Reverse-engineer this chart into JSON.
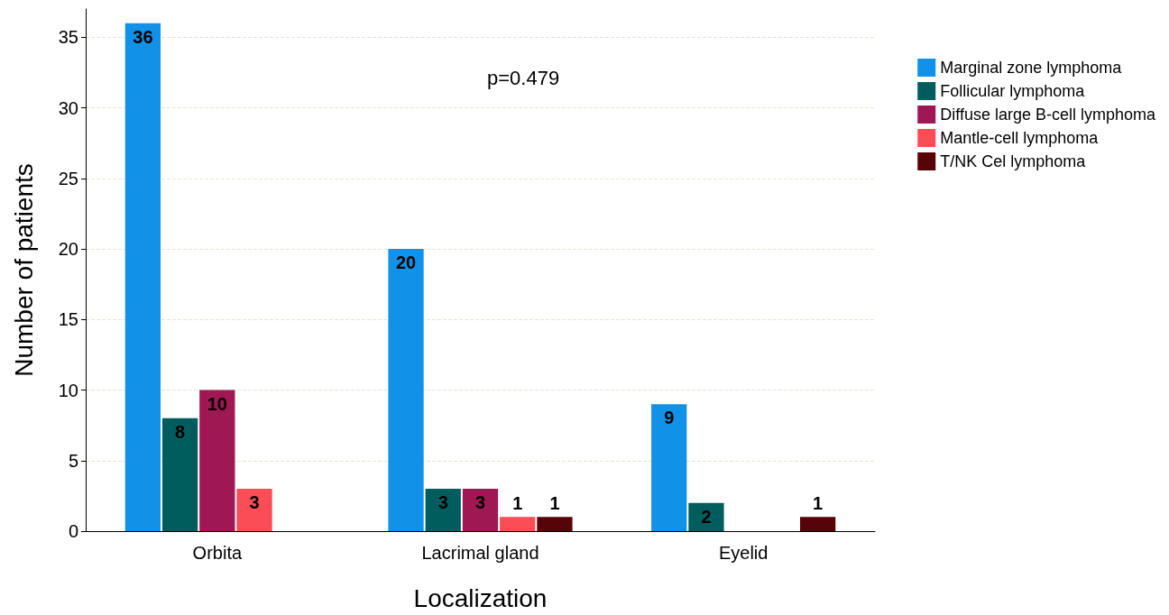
{
  "chart_data": {
    "type": "bar",
    "xlabel": "Localization",
    "ylabel": "Number of patients",
    "categories": [
      "Orbita",
      "Lacrimal gland",
      "Eyelid"
    ],
    "series": [
      {
        "name": "Marginal zone lymphoma",
        "color": "#1192e8",
        "values": [
          36,
          20,
          9
        ]
      },
      {
        "name": "Follicular lymphoma",
        "color": "#005d5d",
        "values": [
          8,
          3,
          2
        ]
      },
      {
        "name": "Diffuse large B-cell lymphoma",
        "color": "#9f1853",
        "values": [
          10,
          3,
          null
        ]
      },
      {
        "name": "Mantle-cell lymphoma",
        "color": "#fa4d56",
        "values": [
          3,
          1,
          null
        ]
      },
      {
        "name": "T/NK Cel lymphoma",
        "color": "#570408",
        "values": [
          null,
          1,
          1
        ]
      }
    ],
    "ylim": [
      0,
      37
    ],
    "yticks": [
      0,
      5,
      10,
      15,
      20,
      25,
      30,
      35
    ],
    "grid": "y",
    "legend": "top right",
    "data_labels": true,
    "annotations": [
      "p=0.479"
    ]
  }
}
